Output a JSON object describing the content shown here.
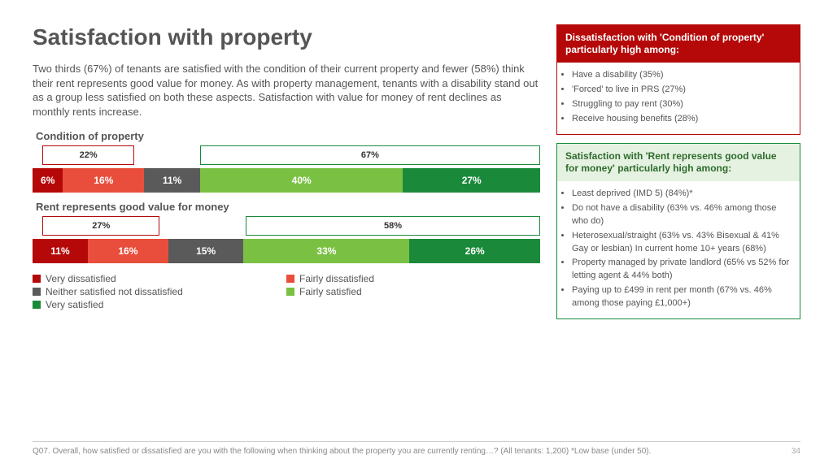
{
  "title": "Satisfaction with property",
  "intro": "Two thirds (67%) of tenants are satisfied with the condition of their current property and fewer (58%) think their rent represents good value for money. As with property management, tenants with a disability stand out as a group less satisfied on both these aspects. Satisfaction with value for money of rent declines as monthly rents increase.",
  "palette": {
    "very_dissatisfied": "#b50909",
    "fairly_dissatisfied": "#e94e3c",
    "neither": "#5a5a5a",
    "fairly_satisfied": "#7ac143",
    "very_satisfied": "#1a8a3a"
  },
  "charts": [
    {
      "label": "Condition of property",
      "segments": [
        {
          "key": "very_dissatisfied",
          "value": 6,
          "text": "6%"
        },
        {
          "key": "fairly_dissatisfied",
          "value": 16,
          "text": "16%"
        },
        {
          "key": "neither",
          "value": 11,
          "text": "11%"
        },
        {
          "key": "fairly_satisfied",
          "value": 40,
          "text": "40%"
        },
        {
          "key": "very_satisfied",
          "value": 27,
          "text": "27%"
        }
      ],
      "summaries": [
        {
          "text": "22%",
          "left_pct": 2,
          "width_pct": 18,
          "border": "#b50909"
        },
        {
          "text": "67%",
          "left_pct": 33,
          "width_pct": 67,
          "border": "#1a8a3a"
        }
      ]
    },
    {
      "label": "Rent represents good value for money",
      "segments": [
        {
          "key": "very_dissatisfied",
          "value": 11,
          "text": "11%"
        },
        {
          "key": "fairly_dissatisfied",
          "value": 16,
          "text": "16%"
        },
        {
          "key": "neither",
          "value": 15,
          "text": "15%"
        },
        {
          "key": "fairly_satisfied",
          "value": 33,
          "text": "33%"
        },
        {
          "key": "very_satisfied",
          "value": 26,
          "text": "26%"
        }
      ],
      "summaries": [
        {
          "text": "27%",
          "left_pct": 2,
          "width_pct": 23,
          "border": "#b50909"
        },
        {
          "text": "58%",
          "left_pct": 42,
          "width_pct": 58,
          "border": "#1a8a3a"
        }
      ]
    }
  ],
  "legend": [
    {
      "key": "very_dissatisfied",
      "label": "Very dissatisfied"
    },
    {
      "key": "fairly_dissatisfied",
      "label": "Fairly dissatisfied"
    },
    {
      "key": "neither",
      "label": "Neither satisfied not dissatisfied"
    },
    {
      "key": "fairly_satisfied",
      "label": "Fairly satisfied"
    },
    {
      "key": "very_satisfied",
      "label": "Very satisfied"
    }
  ],
  "callouts": [
    {
      "header": "Dissatisfaction with 'Condition of property' particularly high among:",
      "header_bg": "#b50909",
      "border": "#b50909",
      "header_class": "",
      "items": [
        "Have a disability (35%)",
        "'Forced' to live in PRS (27%)",
        "Struggling to pay rent (30%)",
        "Receive housing benefits (28%)"
      ]
    },
    {
      "header": "Satisfaction with 'Rent represents good value for money' particularly high among:",
      "header_bg": "#e6f2e1",
      "border": "#1a8a3a",
      "header_class": "green-head",
      "items": [
        "Least deprived (IMD 5) (84%)*",
        "Do not have a disability (63% vs. 46% among those who do)",
        "Heterosexual/straight (63% vs. 43% Bisexual & 41% Gay or lesbian) In current home 10+ years (68%)",
        "Property managed by private landlord (65% vs 52% for letting agent & 44% both)",
        "Paying up to £499 in rent per month (67% vs. 46% among those paying £1,000+)"
      ]
    }
  ],
  "footer": "Q07. Overall, how satisfied or dissatisfied are you with the following when thinking about the property you are currently renting…? (All tenants: 1,200) *Low base (under 50).",
  "page_number": "34"
}
